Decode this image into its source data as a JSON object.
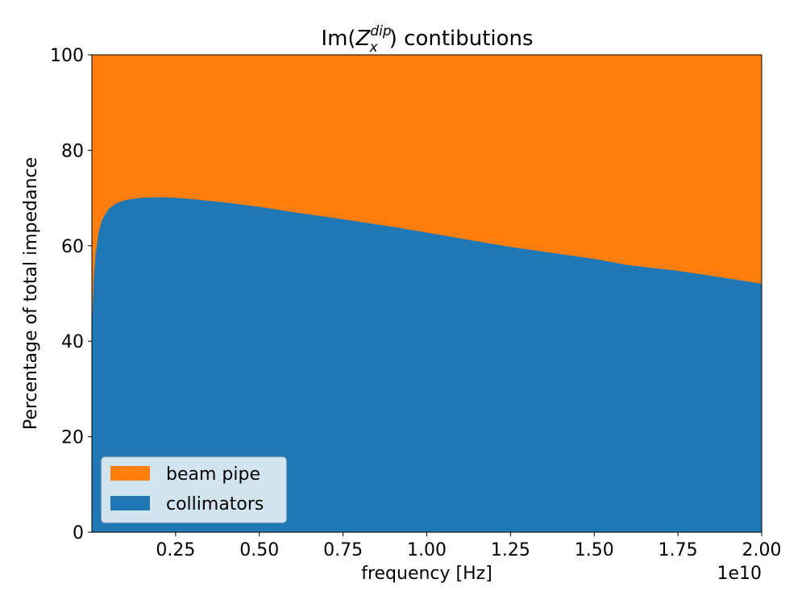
{
  "chart_data": {
    "type": "area",
    "stacked": true,
    "title_prefix": "Im(",
    "title_main": "Z",
    "title_sup": "dip",
    "title_sub": "x",
    "title_suffix": ") contibutions",
    "xlabel": "frequency [Hz]",
    "ylabel": "Percentage of total impedance",
    "x_offset_text": "1e10",
    "xlim": [
      0,
      2.0
    ],
    "ylim": [
      0,
      100
    ],
    "x_ticks": [
      0.25,
      0.5,
      0.75,
      1.0,
      1.25,
      1.5,
      1.75,
      2.0
    ],
    "x_tick_labels": [
      "0.25",
      "0.50",
      "0.75",
      "1.00",
      "1.25",
      "1.50",
      "1.75",
      "2.00"
    ],
    "y_ticks": [
      0,
      20,
      40,
      60,
      80,
      100
    ],
    "y_tick_labels": [
      "0",
      "20",
      "40",
      "60",
      "80",
      "100"
    ],
    "x": [
      0.0,
      0.005,
      0.01,
      0.02,
      0.03,
      0.05,
      0.075,
      0.1,
      0.125,
      0.15,
      0.2,
      0.25,
      0.3,
      0.4,
      0.5,
      0.6,
      0.75,
      0.9,
      1.0,
      1.1,
      1.25,
      1.4,
      1.5,
      1.6,
      1.75,
      1.9,
      2.0
    ],
    "series": [
      {
        "name": "collimators",
        "color": "#1f77b4",
        "values": [
          44.0,
          53.0,
          58.0,
          63.0,
          65.5,
          67.8,
          69.0,
          69.6,
          69.9,
          70.1,
          70.2,
          70.1,
          69.8,
          69.1,
          68.2,
          67.1,
          65.6,
          64.0,
          62.8,
          61.6,
          59.8,
          58.3,
          57.3,
          56.0,
          54.8,
          53.2,
          52.1
        ]
      },
      {
        "name": "beam pipe",
        "color": "#ff7f0e",
        "values": [
          56.0,
          47.0,
          42.0,
          37.0,
          34.5,
          32.2,
          31.0,
          30.4,
          30.1,
          29.9,
          29.8,
          29.9,
          30.2,
          30.9,
          31.8,
          32.9,
          34.4,
          36.0,
          37.2,
          38.4,
          40.2,
          41.7,
          42.7,
          44.0,
          45.2,
          46.8,
          47.9
        ]
      }
    ],
    "legend": {
      "placement": "lower-left",
      "entries": [
        "beam pipe",
        "collimators"
      ]
    },
    "grid": false
  }
}
